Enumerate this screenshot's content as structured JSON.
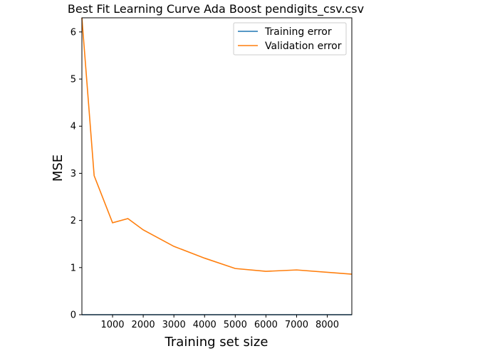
{
  "chart_data": {
    "type": "line",
    "title": "Best Fit Learning Curve Ada Boost pendigits_csv.csv",
    "xlabel": "Training set size",
    "ylabel": "MSE",
    "xlim": [
      1,
      8800
    ],
    "ylim": [
      0,
      6.3
    ],
    "xticks": [
      1000,
      2000,
      3000,
      4000,
      5000,
      6000,
      7000,
      8000
    ],
    "yticks": [
      0,
      1,
      2,
      3,
      4,
      5,
      6
    ],
    "grid": false,
    "legend_position": "top-right",
    "series": [
      {
        "name": "Training error",
        "color": "#1f77b4",
        "x": [
          1,
          400,
          1000,
          1500,
          2000,
          3000,
          4000,
          5000,
          6000,
          7000,
          8800
        ],
        "y": [
          0,
          0,
          0,
          0,
          0,
          0,
          0,
          0,
          0,
          0,
          0
        ]
      },
      {
        "name": "Validation error",
        "color": "#ff7f0e",
        "x": [
          1,
          400,
          1000,
          1500,
          2000,
          3000,
          4000,
          5000,
          6000,
          7000,
          8800
        ],
        "y": [
          6.3,
          2.95,
          1.95,
          2.04,
          1.8,
          1.45,
          1.2,
          0.98,
          0.92,
          0.95,
          0.86
        ]
      }
    ]
  }
}
